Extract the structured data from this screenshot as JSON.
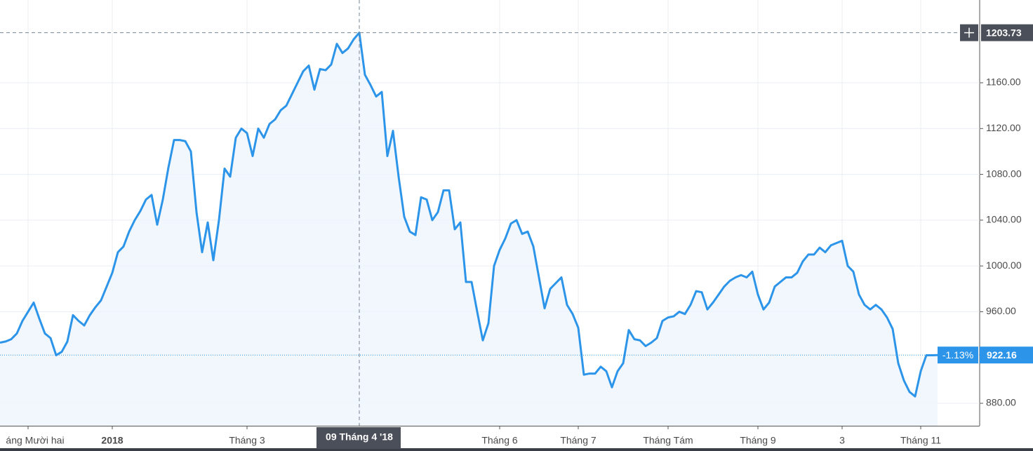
{
  "chart_data": {
    "type": "line",
    "color": "#2d95e9",
    "fill": "#eef5fd",
    "grid": true,
    "values": [
      933,
      934,
      936,
      941,
      952,
      960,
      968,
      954,
      941,
      937,
      922,
      925,
      934,
      957,
      952,
      948,
      957,
      964,
      970,
      982,
      994,
      1012,
      1017,
      1030,
      1040,
      1048,
      1058,
      1062,
      1036,
      1058,
      1086,
      1110,
      1110,
      1109,
      1100,
      1047,
      1012,
      1038,
      1005,
      1040,
      1085,
      1078,
      1112,
      1120,
      1116,
      1096,
      1120,
      1112,
      1124,
      1128,
      1136,
      1140,
      1150,
      1160,
      1170,
      1175,
      1154,
      1172,
      1171,
      1176,
      1194,
      1186,
      1190,
      1198,
      1203.73,
      1167,
      1158,
      1148,
      1152,
      1096,
      1118,
      1078,
      1043,
      1030,
      1027,
      1060,
      1058,
      1040,
      1047,
      1066,
      1066,
      1032,
      1038,
      986,
      986,
      960,
      935,
      950,
      1000,
      1014,
      1024,
      1037,
      1040,
      1028,
      1030,
      1017,
      990,
      963,
      980,
      985,
      990,
      966,
      958,
      946,
      905,
      906,
      906,
      912,
      908,
      894,
      908,
      915,
      944,
      936,
      935,
      930,
      933,
      937,
      952,
      955,
      956,
      960,
      958,
      966,
      978,
      977,
      962,
      968,
      975,
      982,
      987,
      990,
      992,
      990,
      995,
      975,
      962,
      968,
      982,
      986,
      990,
      990,
      994,
      1004,
      1010,
      1010,
      1016,
      1012,
      1018,
      1020,
      1022,
      1000,
      995,
      975,
      966,
      962,
      966,
      962,
      955,
      945,
      915,
      900,
      890,
      886,
      908,
      922,
      922,
      922.16
    ],
    "categories": [
      null,
      null,
      null,
      null,
      null,
      "áng Mười hai",
      null,
      null,
      null,
      null,
      null,
      null,
      null,
      null,
      null,
      null,
      null,
      null,
      null,
      null,
      "2018",
      null,
      null,
      null,
      null,
      null,
      null,
      null,
      null,
      null,
      null,
      null,
      null,
      null,
      null,
      null,
      null,
      null,
      null,
      null,
      null,
      null,
      null,
      null,
      "Tháng 3",
      null,
      null,
      null,
      null,
      null,
      null,
      null,
      null,
      null,
      null,
      null,
      null,
      null,
      null,
      null,
      null,
      null,
      null,
      null,
      null,
      null,
      null,
      null,
      null,
      null,
      null,
      null,
      null,
      null,
      null,
      null,
      null,
      null,
      null,
      null,
      null,
      null,
      null,
      null,
      null,
      null,
      null,
      null,
      null,
      "Tháng 6",
      null,
      null,
      null,
      null,
      null,
      null,
      null,
      null,
      null,
      null,
      null,
      null,
      null,
      "Tháng 7",
      null,
      null,
      null,
      null,
      null,
      null,
      null,
      null,
      null,
      null,
      null,
      null,
      null,
      null,
      null,
      "Tháng Tám",
      null,
      null,
      null,
      null,
      null,
      null,
      null,
      null,
      null,
      null,
      null,
      null,
      null,
      null,
      null,
      "Tháng 9",
      null,
      null,
      null,
      null,
      null,
      null,
      null,
      null,
      null,
      null,
      null,
      null,
      null,
      null,
      "3",
      null,
      null,
      null,
      null,
      null,
      null,
      null,
      null,
      null,
      null,
      null,
      null,
      null,
      "Tháng 11",
      null,
      null,
      null
    ],
    "ylim": [
      860.4,
      1232.3
    ],
    "yticks": [
      {
        "value": 880,
        "label": "880.00"
      },
      {
        "value": 960,
        "label": "960.00"
      },
      {
        "value": 1000,
        "label": "1000.00"
      },
      {
        "value": 1040,
        "label": "1040.00"
      },
      {
        "value": 1080,
        "label": "1080.00"
      },
      {
        "value": 1120,
        "label": "1120.00"
      },
      {
        "value": 1160,
        "label": "1160.00"
      }
    ],
    "crosshair": {
      "x_label": "09 Tháng 4 '18",
      "y": 1203.73
    },
    "change": {
      "value": -1.13,
      "label": "-1.13%"
    }
  }
}
